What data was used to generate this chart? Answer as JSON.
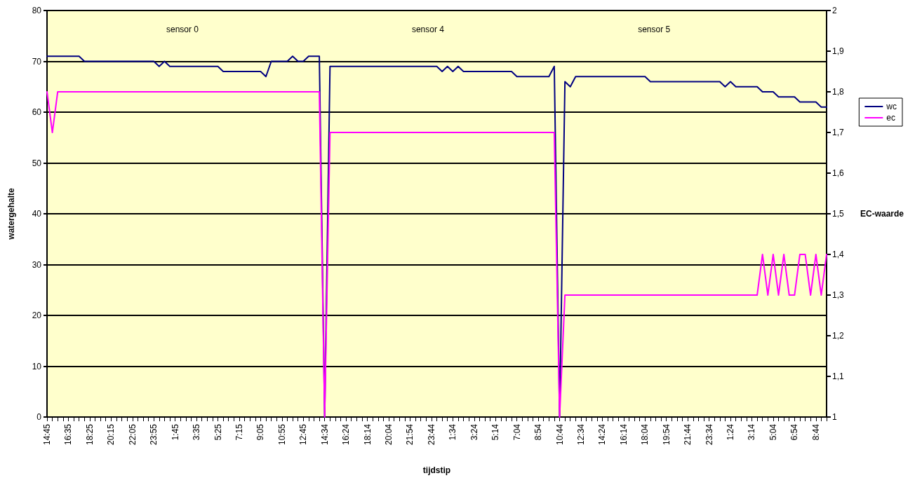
{
  "chart_data": {
    "type": "line",
    "xlabel": "tijdstip",
    "ylabel": "watergehalte",
    "y2label": "EC-waarde",
    "annotations": [
      "sensor 0",
      "sensor 4",
      "sensor 5"
    ],
    "categories": [
      "14:45",
      null,
      null,
      null,
      "16:35",
      null,
      null,
      null,
      "18:25",
      null,
      null,
      null,
      "20:15",
      null,
      null,
      null,
      "22:05",
      null,
      null,
      null,
      "23:55",
      null,
      null,
      null,
      "1:45",
      null,
      null,
      null,
      "3:35",
      null,
      null,
      null,
      "5:25",
      null,
      null,
      null,
      "7:15",
      null,
      null,
      null,
      "9:05",
      null,
      null,
      null,
      "10:55",
      null,
      null,
      null,
      "12:45",
      null,
      null,
      null,
      "14:34",
      null,
      null,
      null,
      "16:24",
      null,
      null,
      null,
      "18:14",
      null,
      null,
      null,
      "20:04",
      null,
      null,
      null,
      "21:54",
      null,
      null,
      null,
      "23:44",
      null,
      null,
      null,
      "1:34",
      null,
      null,
      null,
      "3:24",
      null,
      null,
      null,
      "5:14",
      null,
      null,
      null,
      "7:04",
      null,
      null,
      null,
      "8:54",
      null,
      null,
      null,
      "10:44",
      null,
      null,
      null,
      "12:34",
      null,
      null,
      null,
      "14:24",
      null,
      null,
      null,
      "16:14",
      null,
      null,
      null,
      "18:04",
      null,
      null,
      null,
      "19:54",
      null,
      null,
      null,
      "21:44",
      null,
      null,
      null,
      "23:34",
      null,
      null,
      null,
      "1:24",
      null,
      null,
      null,
      "3:14",
      null,
      null,
      null,
      "5:04",
      null,
      null,
      null,
      "6:54",
      null,
      null,
      null,
      "8:44",
      null,
      null
    ],
    "series": [
      {
        "name": "wc",
        "color": "#000080",
        "values": [
          71,
          71,
          71,
          71,
          71,
          71,
          71,
          70,
          70,
          70,
          70,
          70,
          70,
          70,
          70,
          70,
          70,
          70,
          70,
          70,
          70,
          69,
          70,
          69,
          69,
          69,
          69,
          69,
          69,
          69,
          69,
          69,
          69,
          68,
          68,
          68,
          68,
          68,
          68,
          68,
          68,
          67,
          70,
          70,
          70,
          70,
          71,
          70,
          70,
          71,
          71,
          71,
          0,
          69,
          69,
          69,
          69,
          69,
          69,
          69,
          69,
          69,
          69,
          69,
          69,
          69,
          69,
          69,
          69,
          69,
          69,
          69,
          69,
          69,
          68,
          69,
          68,
          69,
          68,
          68,
          68,
          68,
          68,
          68,
          68,
          68,
          68,
          68,
          67,
          67,
          67,
          67,
          67,
          67,
          67,
          69,
          0,
          66,
          65,
          67,
          67,
          67,
          67,
          67,
          67,
          67,
          67,
          67,
          67,
          67,
          67,
          67,
          67,
          66,
          66,
          66,
          66,
          66,
          66,
          66,
          66,
          66,
          66,
          66,
          66,
          66,
          66,
          65,
          66,
          65,
          65,
          65,
          65,
          65,
          64,
          64,
          64,
          63,
          63,
          63,
          63,
          62,
          62,
          62,
          62,
          61,
          61
        ]
      },
      {
        "name": "ec",
        "color": "#ff00ff",
        "axis": "y2",
        "values": [
          1.8,
          1.7,
          1.8,
          1.8,
          1.8,
          1.8,
          1.8,
          1.8,
          1.8,
          1.8,
          1.8,
          1.8,
          1.8,
          1.8,
          1.8,
          1.8,
          1.8,
          1.8,
          1.8,
          1.8,
          1.8,
          1.8,
          1.8,
          1.8,
          1.8,
          1.8,
          1.8,
          1.8,
          1.8,
          1.8,
          1.8,
          1.8,
          1.8,
          1.8,
          1.8,
          1.8,
          1.8,
          1.8,
          1.8,
          1.8,
          1.8,
          1.8,
          1.8,
          1.8,
          1.8,
          1.8,
          1.8,
          1.8,
          1.8,
          1.8,
          1.8,
          1.8,
          1,
          1.7,
          1.7,
          1.7,
          1.7,
          1.7,
          1.7,
          1.7,
          1.7,
          1.7,
          1.7,
          1.7,
          1.7,
          1.7,
          1.7,
          1.7,
          1.7,
          1.7,
          1.7,
          1.7,
          1.7,
          1.7,
          1.7,
          1.7,
          1.7,
          1.7,
          1.7,
          1.7,
          1.7,
          1.7,
          1.7,
          1.7,
          1.7,
          1.7,
          1.7,
          1.7,
          1.7,
          1.7,
          1.7,
          1.7,
          1.7,
          1.7,
          1.7,
          1.7,
          1,
          1.3,
          1.3,
          1.3,
          1.3,
          1.3,
          1.3,
          1.3,
          1.3,
          1.3,
          1.3,
          1.3,
          1.3,
          1.3,
          1.3,
          1.3,
          1.3,
          1.3,
          1.3,
          1.3,
          1.3,
          1.3,
          1.3,
          1.3,
          1.3,
          1.3,
          1.3,
          1.3,
          1.3,
          1.3,
          1.3,
          1.3,
          1.3,
          1.3,
          1.3,
          1.3,
          1.3,
          1.3,
          1.4,
          1.3,
          1.4,
          1.3,
          1.4,
          1.3,
          1.3,
          1.4,
          1.4,
          1.3,
          1.4,
          1.3,
          1.4
        ]
      }
    ],
    "ylim": [
      0,
      80
    ],
    "yticks": [
      0,
      10,
      20,
      30,
      40,
      50,
      60,
      70,
      80
    ],
    "y2lim": [
      1,
      2
    ],
    "y2ticks": [
      1,
      {
        "value": 1.1,
        "label": "1,1"
      },
      {
        "value": 1.2,
        "label": "1,2"
      },
      {
        "value": 1.3,
        "label": "1,3"
      },
      {
        "value": 1.4,
        "label": "1,4"
      },
      {
        "value": 1.5,
        "label": "1,5"
      },
      {
        "value": 1.6,
        "label": "1,6"
      },
      {
        "value": 1.7,
        "label": "1,7"
      },
      {
        "value": 1.8,
        "label": "1,8"
      },
      {
        "value": 1.9,
        "label": "1,9"
      },
      2
    ],
    "grid": "y",
    "legend": "right",
    "marker": "none",
    "line_style": "solid"
  }
}
